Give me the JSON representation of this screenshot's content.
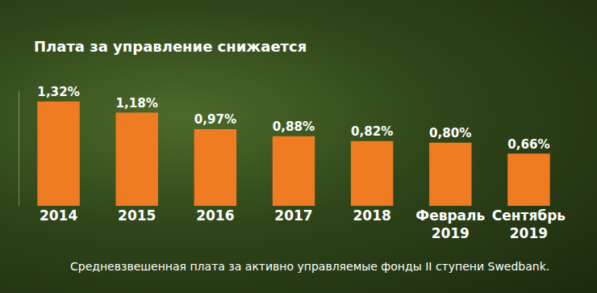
{
  "chart_data": {
    "type": "bar",
    "title": "Плата за управление снижается",
    "note": "Средневзвешенная плата за активно управляемые фонды II ступени Swedbank.",
    "categories": [
      "2014",
      "2015",
      "2016",
      "2017",
      "2018",
      "Февраль 2019",
      "Сентябрь 2019"
    ],
    "values": [
      1.32,
      1.18,
      0.97,
      0.88,
      0.82,
      0.8,
      0.66
    ],
    "value_labels": [
      "1,32%",
      "1,18%",
      "0,97%",
      "0,88%",
      "0,82%",
      "0,80%",
      "0,66%"
    ],
    "color": "#ef7b23",
    "ylim": [
      0,
      1.45
    ],
    "grid": false,
    "data_labels": true,
    "tick_labels": "x"
  }
}
